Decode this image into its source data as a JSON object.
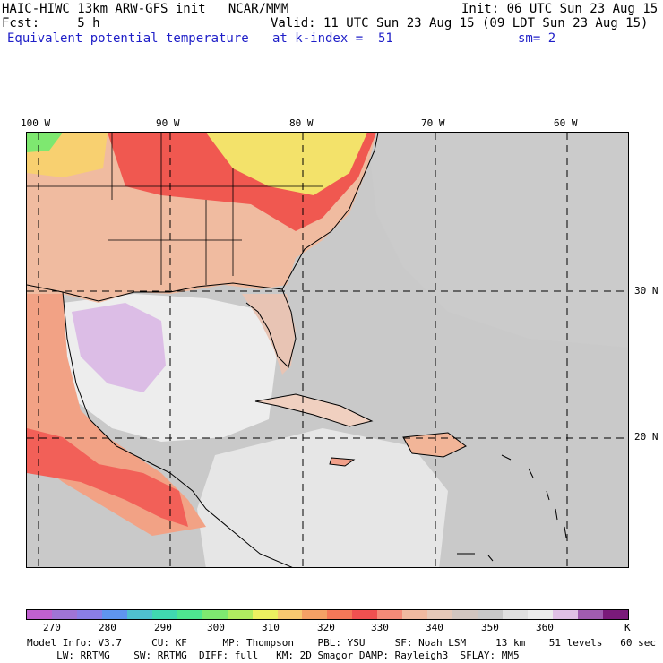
{
  "header": {
    "line1_left": "HAIC-HIWC 13km ARW-GFS init   NCAR/MMM",
    "line1_right": "Init: 06 UTC Sun 23 Aug 15",
    "line2_left": "Fcst:     5 h",
    "line2_right": "Valid: 11 UTC Sun 23 Aug 15 (09 LDT Sun 23 Aug 15)",
    "line3_field": "Equivalent potential temperature",
    "line3_level": "at k-index =  51",
    "line3_smooth": "sm= 2"
  },
  "map": {
    "lon_labels": [
      "100 W",
      "90 W",
      "80 W",
      "70 W",
      "60 W"
    ],
    "lat_labels": [
      "30 N",
      "20 N"
    ]
  },
  "colorbar": {
    "colors": [
      "#c060d0",
      "#9f74d6",
      "#8a7ee6",
      "#5f95ee",
      "#4fc0d0",
      "#40d8b0",
      "#4ee690",
      "#7ee870",
      "#b0ec60",
      "#ecf060",
      "#f7c970",
      "#f5a065",
      "#f57858",
      "#f05050",
      "#f48a78",
      "#f0b9a0",
      "#e6c8b8",
      "#d2c6c0",
      "#c8c8c8",
      "#e0e0e0",
      "#ececec",
      "#e0c0e6",
      "#a05cb0",
      "#7a1a7a"
    ],
    "labels": [
      "270",
      "280",
      "290",
      "300",
      "310",
      "320",
      "330",
      "340",
      "350",
      "360",
      "K"
    ]
  },
  "footer": {
    "line1": "Model Info: V3.7     CU: KF      MP: Thompson    PBL: YSU     SF: Noah LSM     13 km    51 levels   60 sec",
    "line2": "     LW: RRTMG    SW: RRTMG  DIFF: full   KM: 2D Smagor DAMP: Rayleigh3  SFLAY: MM5"
  }
}
